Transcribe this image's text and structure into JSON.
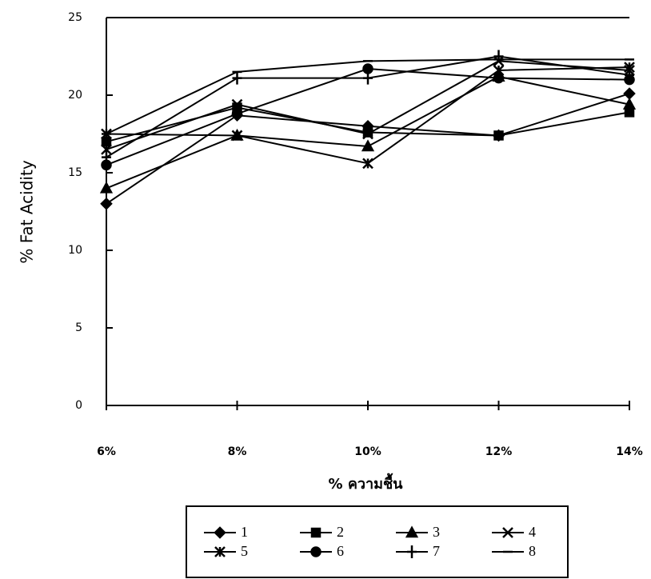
{
  "chart_data": {
    "type": "line",
    "x_label": "% ความชื้น",
    "y_label": "% Fat Acidity",
    "categories": [
      "6%",
      "8%",
      "10%",
      "12%",
      "14%"
    ],
    "ylim": [
      0,
      25
    ],
    "yticks": [
      0,
      5,
      10,
      15,
      20,
      25
    ],
    "series": [
      {
        "name": "1",
        "color": "#000000",
        "marker": "diamond",
        "values": [
          13.0,
          18.7,
          18.0,
          17.4,
          20.1
        ]
      },
      {
        "name": "2",
        "color": "#000000",
        "marker": "square",
        "values": [
          17.0,
          19.2,
          17.6,
          17.4,
          18.9
        ]
      },
      {
        "name": "3",
        "color": "#000000",
        "marker": "triangle",
        "values": [
          14.0,
          17.4,
          16.7,
          21.2,
          19.4
        ]
      },
      {
        "name": "4",
        "color": "#000000",
        "marker": "x",
        "values": [
          16.5,
          19.4,
          17.5,
          22.2,
          21.6
        ]
      },
      {
        "name": "5",
        "color": "#000000",
        "marker": "asterisk",
        "values": [
          17.5,
          17.4,
          15.6,
          21.6,
          21.8
        ]
      },
      {
        "name": "6",
        "color": "#000000",
        "marker": "circle",
        "values": [
          15.5,
          18.8,
          21.7,
          21.1,
          21.0
        ]
      },
      {
        "name": "7",
        "color": "#000000",
        "marker": "plus",
        "values": [
          16.0,
          21.1,
          21.1,
          22.5,
          21.3
        ]
      },
      {
        "name": "8",
        "color": "#000000",
        "marker": "dash",
        "values": [
          17.5,
          21.5,
          22.2,
          22.3,
          22.3
        ]
      }
    ]
  }
}
